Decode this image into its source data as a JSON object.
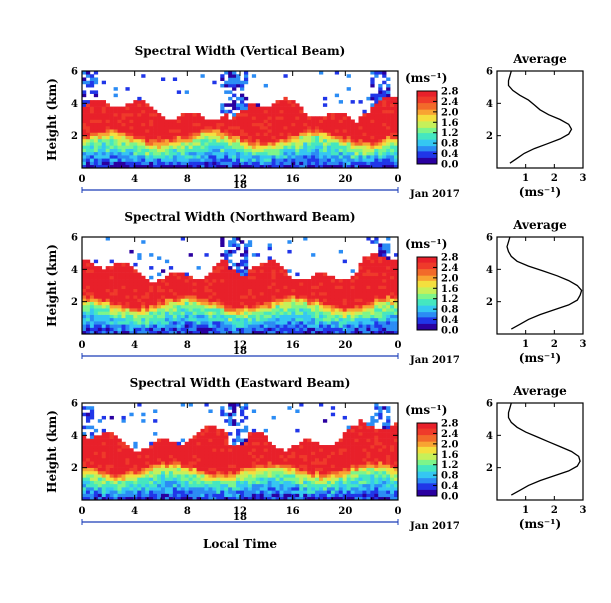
{
  "figure": {
    "common_xlabel": "Local Time",
    "date_label": "Jan 2017",
    "date_tick": "18"
  },
  "colormap": [
    "#2a00a0",
    "#2036e8",
    "#2b8cf4",
    "#35c7f2",
    "#45e7c0",
    "#7df58a",
    "#c6f05a",
    "#f4df3e",
    "#f8a432",
    "#f26a2a",
    "#ef3a2a",
    "#e8202a"
  ],
  "chart_data": [
    {
      "type": "heatmap",
      "title": "Spectral Width (Vertical Beam)",
      "ylabel": "Height (km)",
      "xlabel": "Local Time",
      "x_ticks": [
        "0",
        "4",
        "8",
        "12",
        "16",
        "20",
        "0"
      ],
      "xlim": [
        0,
        24
      ],
      "y_ticks": [
        "2",
        "4",
        "6"
      ],
      "ylim": [
        0,
        6
      ],
      "colorbar": {
        "unit_label": "(ms⁻¹)",
        "ticks": [
          "0.0",
          "0.4",
          "0.8",
          "1.2",
          "1.6",
          "2.0",
          "2.4",
          "2.8"
        ],
        "range": [
          0,
          2.8
        ]
      },
      "inset": {
        "title": "Average",
        "xlabel": "(ms⁻¹)",
        "x_ticks": [
          "1",
          "2",
          "3"
        ],
        "xlim": [
          0,
          3
        ],
        "y_ticks": [
          "2",
          "4",
          "6"
        ],
        "ylim": [
          0,
          6
        ],
        "profile": [
          {
            "h": 0.3,
            "v": 0.45
          },
          {
            "h": 0.6,
            "v": 0.7
          },
          {
            "h": 0.9,
            "v": 0.95
          },
          {
            "h": 1.2,
            "v": 1.3
          },
          {
            "h": 1.5,
            "v": 1.75
          },
          {
            "h": 1.8,
            "v": 2.2
          },
          {
            "h": 2.1,
            "v": 2.5
          },
          {
            "h": 2.4,
            "v": 2.6
          },
          {
            "h": 2.7,
            "v": 2.5
          },
          {
            "h": 3.0,
            "v": 2.2
          },
          {
            "h": 3.3,
            "v": 1.8
          },
          {
            "h": 3.6,
            "v": 1.5
          },
          {
            "h": 3.9,
            "v": 1.3
          },
          {
            "h": 4.2,
            "v": 1.1
          },
          {
            "h": 4.5,
            "v": 0.8
          },
          {
            "h": 4.8,
            "v": 0.55
          },
          {
            "h": 5.1,
            "v": 0.4
          },
          {
            "h": 5.4,
            "v": 0.4
          },
          {
            "h": 5.7,
            "v": 0.45
          },
          {
            "h": 6.0,
            "v": 0.5
          }
        ]
      }
    },
    {
      "type": "heatmap",
      "title": "Spectral Width (Northward Beam)",
      "ylabel": "Height (km)",
      "xlabel": "Local Time",
      "x_ticks": [
        "0",
        "4",
        "8",
        "12",
        "16",
        "20",
        "0"
      ],
      "xlim": [
        0,
        24
      ],
      "y_ticks": [
        "2",
        "4",
        "6"
      ],
      "ylim": [
        0,
        6
      ],
      "colorbar": {
        "unit_label": "(ms⁻¹)",
        "ticks": [
          "0.0",
          "0.4",
          "0.8",
          "1.2",
          "1.6",
          "2.0",
          "2.4",
          "2.8"
        ],
        "range": [
          0,
          2.8
        ]
      },
      "inset": {
        "title": "Average",
        "xlabel": "(ms⁻¹)",
        "x_ticks": [
          "1",
          "2",
          "3"
        ],
        "xlim": [
          0,
          3
        ],
        "y_ticks": [
          "2",
          "4",
          "6"
        ],
        "ylim": [
          0,
          6
        ],
        "profile": [
          {
            "h": 0.3,
            "v": 0.5
          },
          {
            "h": 0.6,
            "v": 0.8
          },
          {
            "h": 0.9,
            "v": 1.1
          },
          {
            "h": 1.2,
            "v": 1.5
          },
          {
            "h": 1.5,
            "v": 2.0
          },
          {
            "h": 1.8,
            "v": 2.5
          },
          {
            "h": 2.1,
            "v": 2.8
          },
          {
            "h": 2.4,
            "v": 2.9
          },
          {
            "h": 2.7,
            "v": 2.95
          },
          {
            "h": 3.0,
            "v": 2.8
          },
          {
            "h": 3.3,
            "v": 2.5
          },
          {
            "h": 3.6,
            "v": 2.1
          },
          {
            "h": 3.9,
            "v": 1.6
          },
          {
            "h": 4.2,
            "v": 1.1
          },
          {
            "h": 4.5,
            "v": 0.7
          },
          {
            "h": 4.8,
            "v": 0.5
          },
          {
            "h": 5.1,
            "v": 0.4
          },
          {
            "h": 5.4,
            "v": 0.35
          },
          {
            "h": 5.7,
            "v": 0.4
          },
          {
            "h": 6.0,
            "v": 0.45
          }
        ]
      }
    },
    {
      "type": "heatmap",
      "title": "Spectral Width (Eastward Beam)",
      "ylabel": "Height (km)",
      "xlabel": "Local Time",
      "x_ticks": [
        "0",
        "4",
        "8",
        "12",
        "16",
        "20",
        "0"
      ],
      "xlim": [
        0,
        24
      ],
      "y_ticks": [
        "2",
        "4",
        "6"
      ],
      "ylim": [
        0,
        6
      ],
      "colorbar": {
        "unit_label": "(ms⁻¹)",
        "ticks": [
          "0.0",
          "0.4",
          "0.8",
          "1.2",
          "1.6",
          "2.0",
          "2.4",
          "2.8"
        ],
        "range": [
          0,
          2.8
        ]
      },
      "inset": {
        "title": "Average",
        "xlabel": "(ms⁻¹)",
        "x_ticks": [
          "1",
          "2",
          "3"
        ],
        "xlim": [
          0,
          3
        ],
        "y_ticks": [
          "2",
          "4",
          "6"
        ],
        "ylim": [
          0,
          6
        ],
        "profile": [
          {
            "h": 0.3,
            "v": 0.5
          },
          {
            "h": 0.6,
            "v": 0.8
          },
          {
            "h": 0.9,
            "v": 1.1
          },
          {
            "h": 1.2,
            "v": 1.5
          },
          {
            "h": 1.5,
            "v": 2.0
          },
          {
            "h": 1.8,
            "v": 2.5
          },
          {
            "h": 2.1,
            "v": 2.8
          },
          {
            "h": 2.4,
            "v": 2.9
          },
          {
            "h": 2.7,
            "v": 2.85
          },
          {
            "h": 3.0,
            "v": 2.6
          },
          {
            "h": 3.3,
            "v": 2.2
          },
          {
            "h": 3.6,
            "v": 1.8
          },
          {
            "h": 3.9,
            "v": 1.4
          },
          {
            "h": 4.2,
            "v": 1.0
          },
          {
            "h": 4.5,
            "v": 0.7
          },
          {
            "h": 4.8,
            "v": 0.5
          },
          {
            "h": 5.1,
            "v": 0.4
          },
          {
            "h": 5.4,
            "v": 0.4
          },
          {
            "h": 5.7,
            "v": 0.45
          },
          {
            "h": 6.0,
            "v": 0.5
          }
        ]
      }
    }
  ]
}
